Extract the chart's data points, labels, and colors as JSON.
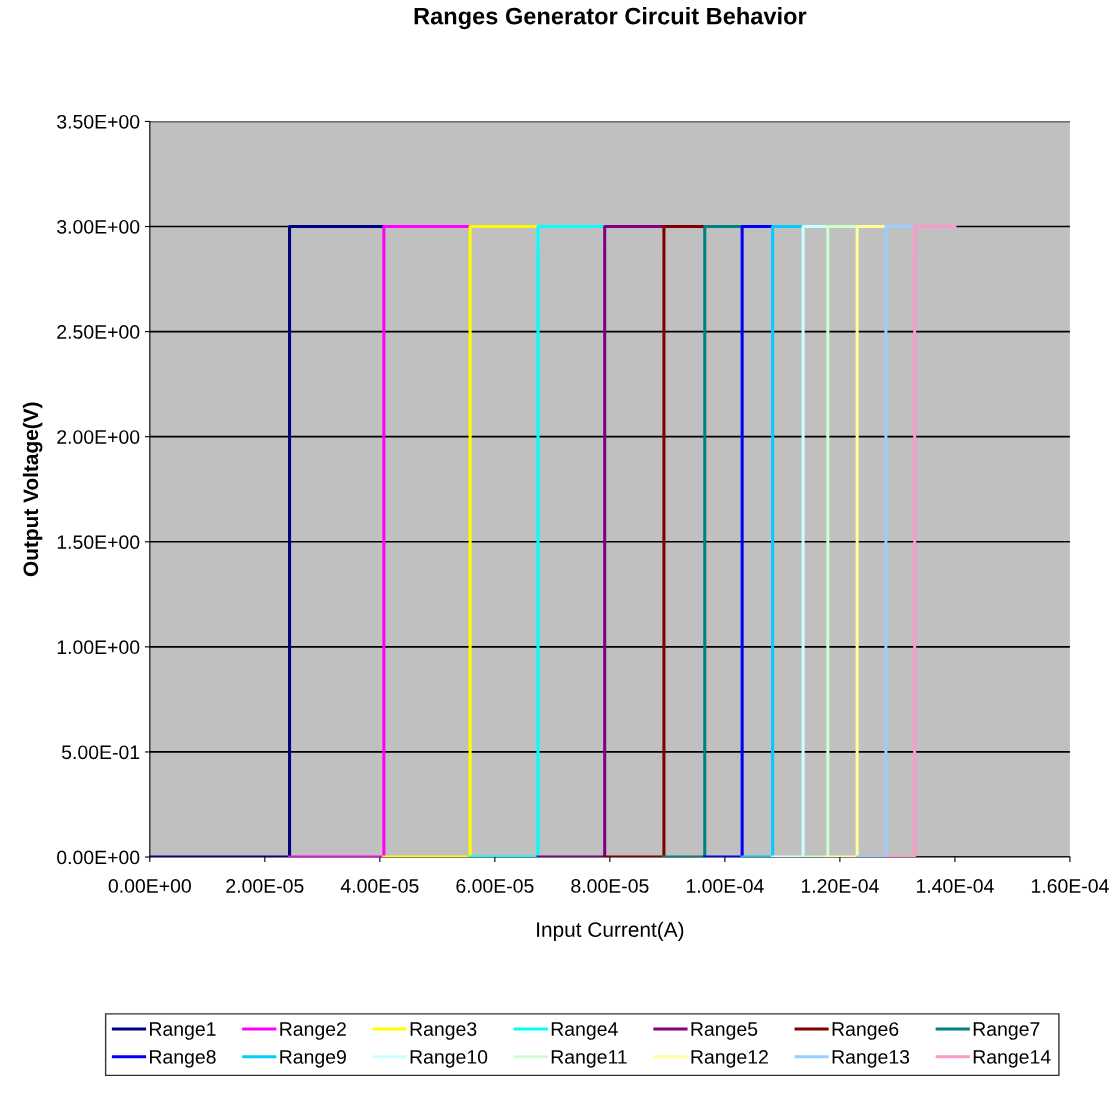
{
  "chart_data": {
    "type": "line",
    "title": "Ranges Generator Circuit Behavior",
    "xlabel": "Input Current(A)",
    "ylabel": "Output Voltage(V)",
    "series": [
      {
        "name": "Range1",
        "color": "#000080",
        "x": [
          0,
          2.43e-05,
          2.43e-05,
          4.07e-05
        ],
        "values": [
          0,
          0,
          3.0,
          3.0
        ]
      },
      {
        "name": "Range2",
        "color": "#ff00ff",
        "x": [
          2.43e-05,
          4.07e-05,
          4.07e-05,
          5.57e-05
        ],
        "values": [
          0,
          0,
          3.0,
          3.0
        ]
      },
      {
        "name": "Range3",
        "color": "#ffff00",
        "x": [
          4.07e-05,
          5.57e-05,
          5.57e-05,
          6.75e-05
        ],
        "values": [
          0,
          0,
          3.0,
          3.0
        ]
      },
      {
        "name": "Range4",
        "color": "#00ffff",
        "x": [
          5.57e-05,
          6.75e-05,
          6.75e-05,
          7.91e-05
        ],
        "values": [
          0,
          0,
          3.0,
          3.0
        ]
      },
      {
        "name": "Range5",
        "color": "#800080",
        "x": [
          6.75e-05,
          7.91e-05,
          7.91e-05,
          8.94e-05
        ],
        "values": [
          0,
          0,
          3.0,
          3.0
        ]
      },
      {
        "name": "Range6",
        "color": "#800000",
        "x": [
          7.91e-05,
          8.94e-05,
          8.94e-05,
          9.65e-05
        ],
        "values": [
          0,
          0,
          3.0,
          3.0
        ]
      },
      {
        "name": "Range7",
        "color": "#008080",
        "x": [
          8.94e-05,
          9.65e-05,
          9.65e-05,
          0.000103
        ],
        "values": [
          0,
          0,
          3.0,
          3.0
        ]
      },
      {
        "name": "Range8",
        "color": "#0000ff",
        "x": [
          9.65e-05,
          0.000103,
          0.000103,
          0.0001083
        ],
        "values": [
          0,
          0,
          3.0,
          3.0
        ]
      },
      {
        "name": "Range9",
        "color": "#00ccff",
        "x": [
          0.000103,
          0.0001083,
          0.0001083,
          0.0001136
        ],
        "values": [
          0,
          0,
          3.0,
          3.0
        ]
      },
      {
        "name": "Range10",
        "color": "#ccffff",
        "x": [
          0.0001083,
          0.0001136,
          0.0001136,
          0.0001179
        ],
        "values": [
          0,
          0,
          3.0,
          3.0
        ]
      },
      {
        "name": "Range11",
        "color": "#ccffcc",
        "x": [
          0.0001136,
          0.0001179,
          0.0001179,
          0.000123
        ],
        "values": [
          0,
          0,
          3.0,
          3.0
        ]
      },
      {
        "name": "Range12",
        "color": "#ffff99",
        "x": [
          0.0001179,
          0.000123,
          0.000123,
          0.000128
        ],
        "values": [
          0,
          0,
          3.0,
          3.0
        ]
      },
      {
        "name": "Range13",
        "color": "#99ccff",
        "x": [
          0.000123,
          0.000128,
          0.000128,
          0.000133
        ],
        "values": [
          0,
          0,
          3.0,
          3.0
        ]
      },
      {
        "name": "Range14",
        "color": "#ff99cc",
        "x": [
          0.000128,
          0.000133,
          0.000133,
          0.00014
        ],
        "values": [
          0,
          0,
          3.0,
          3.0
        ]
      }
    ],
    "xlim": [
      0,
      0.00016
    ],
    "xticks": [
      {
        "value": 0,
        "label": "0.00E+00"
      },
      {
        "value": 2e-05,
        "label": "2.00E-05"
      },
      {
        "value": 4e-05,
        "label": "4.00E-05"
      },
      {
        "value": 6e-05,
        "label": "6.00E-05"
      },
      {
        "value": 8e-05,
        "label": "8.00E-05"
      },
      {
        "value": 0.0001,
        "label": "1.00E-04"
      },
      {
        "value": 0.00012,
        "label": "1.20E-04"
      },
      {
        "value": 0.00014,
        "label": "1.40E-04"
      },
      {
        "value": 0.00016,
        "label": "1.60E-04"
      }
    ],
    "ylim": [
      0,
      3.5
    ],
    "yticks": [
      {
        "value": 0,
        "label": "0.00E+00"
      },
      {
        "value": 0.5,
        "label": "5.00E-01"
      },
      {
        "value": 1.0,
        "label": "1.00E+00"
      },
      {
        "value": 1.5,
        "label": "1.50E+00"
      },
      {
        "value": 2.0,
        "label": "2.00E+00"
      },
      {
        "value": 2.5,
        "label": "2.50E+00"
      },
      {
        "value": 3.0,
        "label": "3.00E+00"
      },
      {
        "value": 3.5,
        "label": "3.50E+00"
      }
    ],
    "grid": "y",
    "legend": "bottom",
    "marker": "none",
    "line_style": "solid"
  }
}
